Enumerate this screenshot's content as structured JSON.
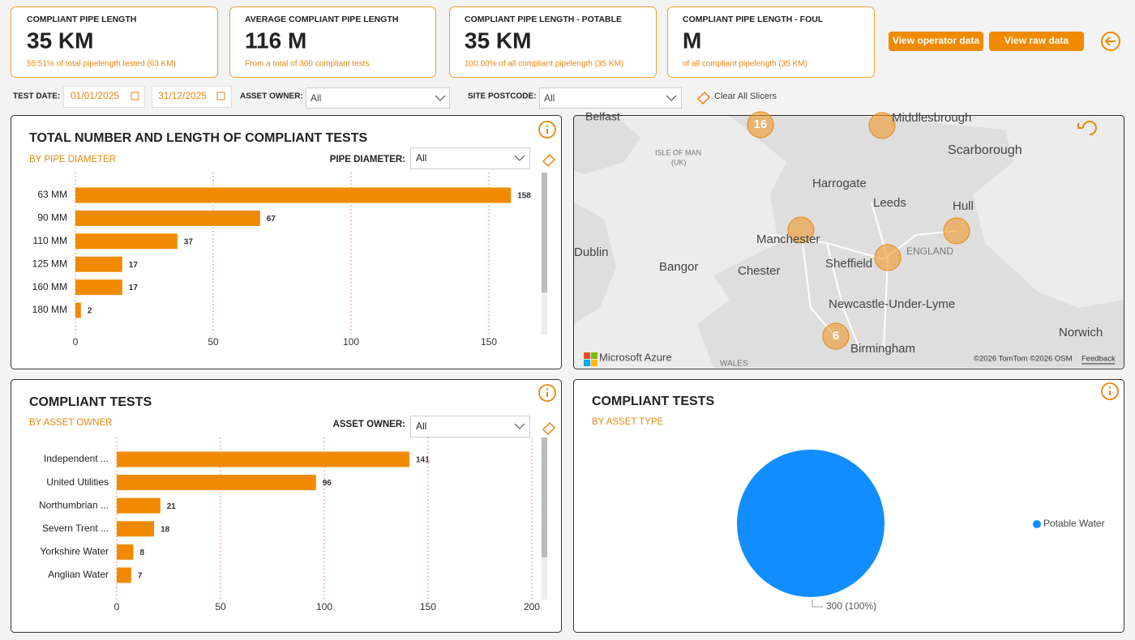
{
  "kpis": [
    {
      "title": "COMPLIANT PIPE LENGTH",
      "value": "35 KM",
      "subtitle": "55.51% of total pipelength tested (63 KM)"
    },
    {
      "title": "AVERAGE COMPLIANT PIPE LENGTH",
      "value": "116 M",
      "subtitle": "From a total of 300 compliant tests"
    },
    {
      "title": "COMPLIANT PIPE LENGTH - POTABLE",
      "value": "35 KM",
      "subtitle": "100.00% of all compliant pipelength (35 KM)"
    },
    {
      "title": "COMPLIANT PIPE LENGTH - FOUL",
      "value": "M",
      "subtitle": "of all compliant pipelength (35 KM)"
    }
  ],
  "buttons": [
    "View operator data",
    "View raw data"
  ],
  "filters": {
    "test_date_label": "TEST DATE:",
    "date_from": "01/01/2025",
    "date_to": "31/12/2025",
    "asset_owner_label": "ASSET OWNER:",
    "asset_owner_value": "All",
    "site_postcode_label": "SITE POSTCODE:",
    "site_postcode_value": "All",
    "clear": "Clear All Slicers"
  },
  "chart_data": [
    {
      "type": "bar",
      "orientation": "horizontal",
      "title": "TOTAL NUMBER AND LENGTH OF COMPLIANT TESTS",
      "subtitle": "BY PIPE DIAMETER",
      "slicer_label": "PIPE DIAMETER:",
      "slicer_value": "All",
      "categories": [
        "63 MM",
        "90 MM",
        "110 MM",
        "125 MM",
        "160 MM",
        "180 MM"
      ],
      "values": [
        158,
        67,
        37,
        17,
        17,
        2
      ],
      "color": "#f08a00",
      "xlim": [
        0,
        168
      ],
      "xticks": [
        0,
        50,
        100,
        150
      ],
      "grid": true
    },
    {
      "type": "bar",
      "orientation": "horizontal",
      "title": "COMPLIANT TESTS",
      "subtitle": "BY ASSET OWNER",
      "slicer_label": "ASSET OWNER:",
      "slicer_value": "All",
      "categories": [
        "Independent ...",
        "United Utilities",
        "Northumbrian ...",
        "Severn Trent ...",
        "Yorkshire Water",
        "Anglian Water"
      ],
      "values": [
        141,
        96,
        21,
        18,
        8,
        7
      ],
      "color": "#f08a00",
      "xlim": [
        0,
        200
      ],
      "xticks": [
        0,
        50,
        100,
        150,
        200
      ],
      "grid": true
    },
    {
      "type": "pie",
      "title": "COMPLIANT TESTS",
      "subtitle": "BY ASSET TYPE",
      "categories": [
        "Potable Water"
      ],
      "values": [
        300
      ],
      "value_labels": [
        "300 (100%)"
      ],
      "colors": [
        "#118dff"
      ],
      "legend": "right"
    }
  ],
  "map": {
    "places": [
      "Belfast",
      "Middlesbrough",
      "ISLE OF MAN",
      "(UK)",
      "Scarborough",
      "Harrogate",
      "Leeds",
      "Hull",
      "Manchester",
      "Dublin",
      "Bangor",
      "Sheffield",
      "ENGLAND",
      "Chester",
      "Newcastle-Under-Lyme",
      "Norwich",
      "Birmingham",
      "WALES"
    ],
    "clusters": [
      "16",
      "6"
    ],
    "attribution": [
      "Microsoft Azure",
      "©2026 TomTom ©2026 OSM",
      "Feedback"
    ]
  }
}
